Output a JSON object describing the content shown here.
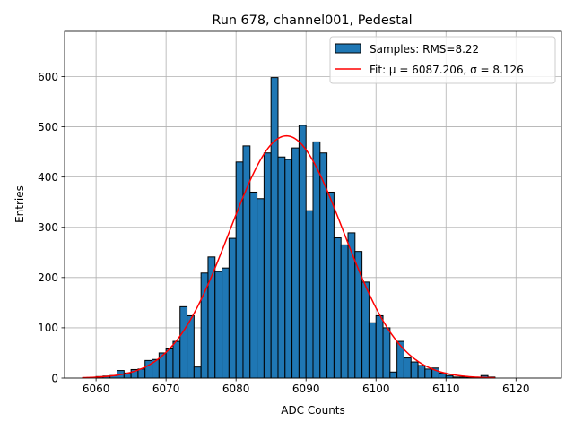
{
  "chart_data": {
    "type": "bar",
    "title": "Run 678, channel001, Pedestal",
    "xlabel": "ADC Counts",
    "ylabel": "Entries",
    "xlim": [
      6055.5,
      6126.5
    ],
    "ylim": [
      0,
      690
    ],
    "xticks": [
      6060,
      6070,
      6080,
      6090,
      6100,
      6110,
      6120
    ],
    "yticks": [
      0,
      100,
      200,
      300,
      400,
      500,
      600
    ],
    "grid": true,
    "legend_position": "top-right",
    "histogram": {
      "name": "Samples: RMS=8.22",
      "color": "#1f77b4",
      "bin_width": 1,
      "bin_start": 6058,
      "counts": [
        0,
        0,
        3,
        4,
        5,
        15,
        10,
        17,
        18,
        35,
        37,
        50,
        58,
        73,
        142,
        124,
        22,
        209,
        241,
        212,
        219,
        278,
        430,
        462,
        370,
        357,
        448,
        598,
        440,
        435,
        458,
        503,
        333,
        470,
        448,
        370,
        279,
        265,
        289,
        252,
        191,
        110,
        124,
        100,
        12,
        73,
        40,
        32,
        25,
        18,
        20,
        10,
        5,
        2,
        2,
        1,
        1,
        5,
        2,
        0,
        0,
        0,
        0,
        0,
        0
      ]
    },
    "series": [
      {
        "name": "Fit: μ = 6087.206, σ = 8.126",
        "type": "line",
        "color": "#ff0000",
        "mu": 6087.206,
        "sigma": 8.126,
        "amplitude": 482,
        "x_range": [
          6058,
          6117
        ]
      }
    ]
  }
}
